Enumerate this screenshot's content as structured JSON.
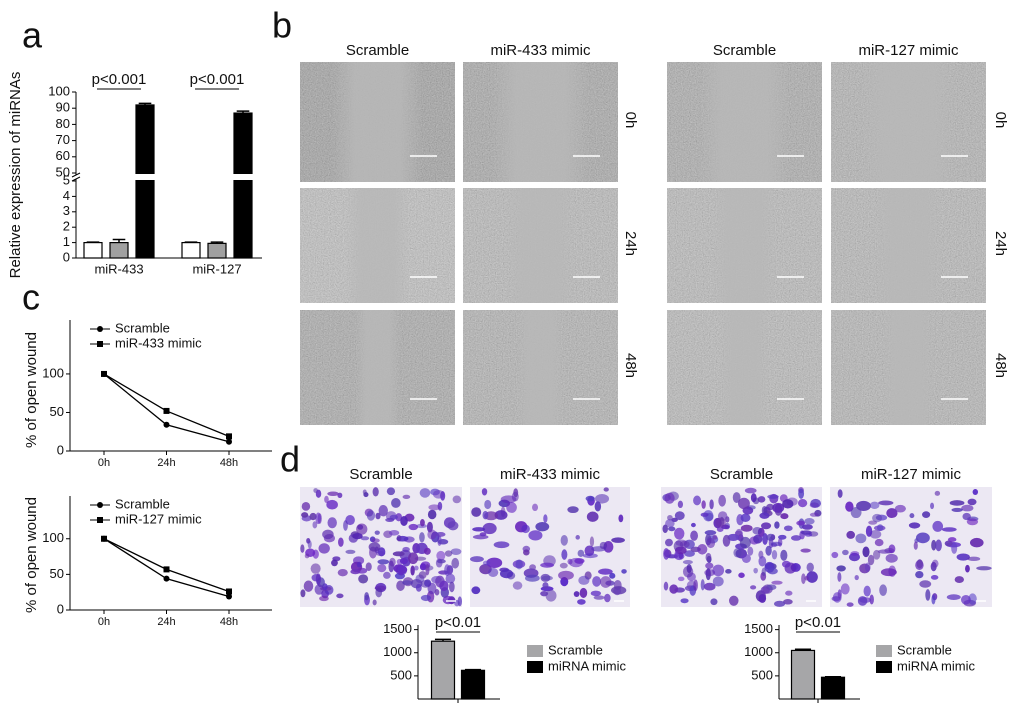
{
  "panels": {
    "letters": [
      "a",
      "b",
      "c",
      "d"
    ],
    "b": {
      "columns": [
        "Scramble",
        "miR-433 mimic",
        "Scramble",
        "miR-127 mimic"
      ],
      "rows": [
        "0h",
        "24h",
        "48h"
      ]
    },
    "d": {
      "columns": [
        "Scramble",
        "miR-433 mimic",
        "Scramble",
        "miR-127 mimic"
      ]
    }
  },
  "chart_data": [
    {
      "type": "bar",
      "y_label": "Relative expression of miRNAs",
      "categories": [
        "miR-433",
        "miR-127"
      ],
      "series": [
        {
          "color": "#ffffff",
          "values": [
            1.0,
            1.0
          ],
          "errors": [
            0.03,
            0.03
          ]
        },
        {
          "color": "#a0a0a0",
          "values": [
            1.0,
            0.95
          ],
          "errors": [
            0.2,
            0.08
          ]
        },
        {
          "color": "#000000",
          "values": [
            92,
            87
          ],
          "errors": [
            1,
            1.2
          ]
        }
      ],
      "annotations": [
        "p<0.001",
        "p<0.001"
      ],
      "ylim": [
        0,
        100
      ],
      "ybreak": [
        5,
        50
      ],
      "yticks": [
        0,
        1,
        2,
        3,
        4,
        5,
        50,
        60,
        70,
        80,
        90,
        100
      ]
    },
    {
      "type": "line",
      "y_label": "% of open wound",
      "categories": [
        "0h",
        "24h",
        "48h"
      ],
      "series": [
        {
          "name": "Scramble",
          "color": "#000000",
          "marker": "circle",
          "values": [
            100,
            34,
            12
          ]
        },
        {
          "name": "miR-433 mimic",
          "color": "#000000",
          "marker": "square",
          "values": [
            100,
            52,
            19
          ]
        }
      ],
      "ylim": [
        0,
        170
      ],
      "yticks": [
        0,
        50,
        100
      ]
    },
    {
      "type": "line",
      "y_label": "% of open wound",
      "categories": [
        "0h",
        "24h",
        "48h"
      ],
      "series": [
        {
          "name": "Scramble",
          "color": "#000000",
          "marker": "circle",
          "values": [
            100,
            44,
            19
          ]
        },
        {
          "name": "miR-127 mimic",
          "color": "#000000",
          "marker": "square",
          "values": [
            100,
            57,
            26
          ]
        }
      ],
      "ylim": [
        0,
        160
      ],
      "yticks": [
        0,
        50,
        100
      ]
    },
    {
      "type": "bar",
      "categories": [
        null
      ],
      "series": [
        {
          "name": "Scramble",
          "color": "#a6a6a8",
          "values": [
            1250
          ],
          "errors": [
            40
          ]
        },
        {
          "name": "miRNA mimic",
          "color": "#000000",
          "values": [
            620
          ],
          "errors": [
            15
          ]
        }
      ],
      "annotations": [
        "p<0.01"
      ],
      "ylim": [
        0,
        1600
      ],
      "yticks": [
        500,
        1000,
        1500
      ]
    },
    {
      "type": "bar",
      "categories": [
        null
      ],
      "series": [
        {
          "name": "Scramble",
          "color": "#a6a6a8",
          "values": [
            1050
          ],
          "errors": [
            25
          ]
        },
        {
          "name": "miRNA mimic",
          "color": "#000000",
          "values": [
            470
          ],
          "errors": [
            12
          ]
        }
      ],
      "annotations": [
        "p<0.01"
      ],
      "ylim": [
        0,
        1600
      ],
      "yticks": [
        500,
        1000,
        1500
      ]
    }
  ]
}
